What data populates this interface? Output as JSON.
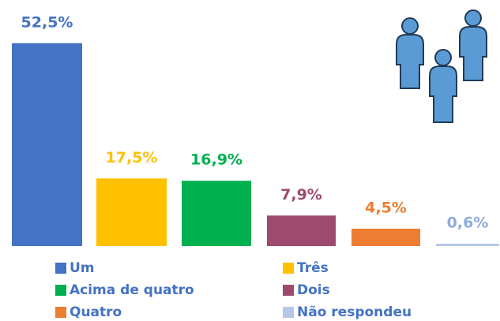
{
  "chart_data": {
    "type": "bar",
    "categories": [
      "Um",
      "Três",
      "Acima de quatro",
      "Dois",
      "Quatro",
      "Não respondeu"
    ],
    "values": [
      52.5,
      17.5,
      16.9,
      7.9,
      4.5,
      0.6
    ],
    "value_labels": [
      "52,5%",
      "17,5%",
      "16,9%",
      "7,9%",
      "4,5%",
      "0,6%"
    ],
    "colors": [
      "#4472c4",
      "#ffc000",
      "#00b050",
      "#9e4a6e",
      "#ed7d31",
      "#b4c7e7"
    ],
    "legend": true
  }
}
